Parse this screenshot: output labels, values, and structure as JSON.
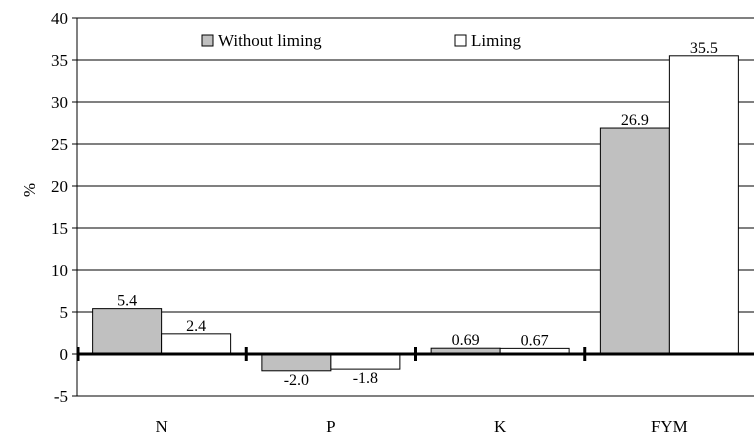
{
  "chart_data": {
    "type": "bar",
    "categories": [
      "N",
      "P",
      "K",
      "FYM"
    ],
    "series": [
      {
        "name": "Without liming",
        "values": [
          5.4,
          -2.0,
          0.69,
          26.9
        ],
        "labels": [
          "5.4",
          "-2.0",
          "0.69",
          "26.9"
        ],
        "color": "#c0c0c0"
      },
      {
        "name": "Liming",
        "values": [
          2.4,
          -1.8,
          0.67,
          35.5
        ],
        "labels": [
          "2.4",
          "-1.8",
          "0.67",
          "35.5"
        ],
        "color": "#ffffff"
      }
    ],
    "title": "",
    "xlabel": "",
    "ylabel": "%",
    "ylim": [
      -5,
      40
    ],
    "yticks": [
      -5,
      0,
      5,
      10,
      15,
      20,
      25,
      30,
      35,
      40
    ],
    "grid": true,
    "legend": "top"
  }
}
